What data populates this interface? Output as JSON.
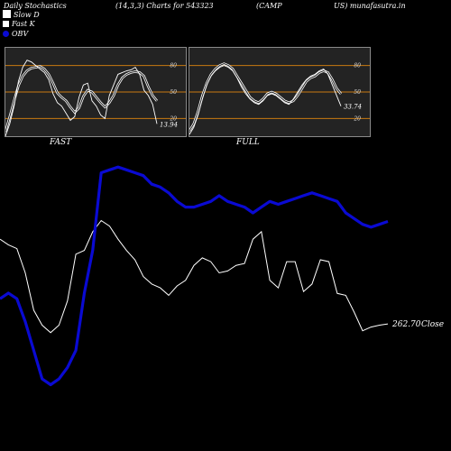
{
  "header": {
    "left": "Daily Stochastics",
    "mid": "(14,3,3) Charts for 543323",
    "right1": "(CAMP",
    "right2": "US) munafasutra.in"
  },
  "legend": {
    "slow_d": "Slow  D",
    "fast_k": "Fast K",
    "obv": "OBV"
  },
  "colors": {
    "background": "#000000",
    "panel": "#232323",
    "level_lines": "#c87a10",
    "obv": "#0a0ad2",
    "price": "#ffffff"
  },
  "chart_data": [
    {
      "name": "FAST",
      "type": "line",
      "label": "FAST",
      "levels": [
        20,
        50,
        80
      ],
      "yticks": [
        "80",
        "50",
        "20"
      ],
      "ylim": [
        0,
        100
      ],
      "end_value": "13.94",
      "series": [
        {
          "name": "Slow  D",
          "values": [
            5,
            22,
            40,
            57,
            68,
            74,
            77,
            78,
            79,
            76,
            70,
            60,
            49,
            44,
            40,
            33,
            27,
            32,
            45,
            52,
            50,
            44,
            38,
            33,
            38,
            46,
            58,
            66,
            70,
            72,
            73,
            72,
            68,
            56,
            46,
            40
          ]
        },
        {
          "name": "Fast K",
          "values": [
            0,
            14,
            34,
            62,
            78,
            86,
            84,
            80,
            76,
            72,
            64,
            48,
            38,
            34,
            26,
            18,
            22,
            44,
            58,
            60,
            40,
            34,
            24,
            20,
            46,
            58,
            70,
            72,
            74,
            75,
            78,
            70,
            52,
            46,
            36,
            14
          ]
        }
      ]
    },
    {
      "name": "FULL",
      "type": "line",
      "label": "FULL",
      "levels": [
        20,
        50,
        80
      ],
      "yticks": [
        "80",
        "50",
        "20"
      ],
      "ylim": [
        0,
        100
      ],
      "end_value": "33.74",
      "series": [
        {
          "name": "Slow  D",
          "values": [
            6,
            14,
            28,
            46,
            60,
            70,
            76,
            80,
            82,
            80,
            76,
            68,
            60,
            52,
            44,
            40,
            38,
            42,
            48,
            50,
            48,
            44,
            40,
            38,
            40,
            46,
            54,
            62,
            66,
            68,
            72,
            74,
            72,
            64,
            54,
            48
          ]
        },
        {
          "name": "Fast K",
          "values": [
            2,
            10,
            24,
            42,
            58,
            68,
            74,
            78,
            80,
            78,
            74,
            66,
            56,
            48,
            42,
            38,
            36,
            40,
            46,
            48,
            46,
            42,
            38,
            36,
            42,
            50,
            58,
            64,
            68,
            70,
            74,
            76,
            70,
            58,
            46,
            34
          ]
        }
      ]
    },
    {
      "name": "Price and OBV",
      "type": "line",
      "close_label": "262.70",
      "close_word": "Close",
      "series": [
        {
          "name": "Close",
          "values": [
            308,
            305,
            303,
            290,
            270,
            262,
            258,
            262,
            275,
            300,
            302,
            312,
            318,
            315,
            308,
            302,
            297,
            288,
            284,
            282,
            278,
            283,
            286,
            294,
            298,
            296,
            290,
            291,
            294,
            295,
            308,
            312,
            286,
            282,
            296,
            296,
            280,
            284,
            297,
            296,
            279,
            278,
            269,
            259,
            261,
            262,
            262.7
          ]
        },
        {
          "name": "OBV",
          "values": [
            58,
            60,
            58,
            50,
            40,
            30,
            28,
            30,
            34,
            40,
            60,
            75,
            102,
            103,
            104,
            103,
            102,
            101,
            98,
            97,
            95,
            92,
            90,
            90,
            91,
            92,
            94,
            92,
            91,
            90,
            88,
            90,
            92,
            91,
            92,
            93,
            94,
            95,
            94,
            93,
            92,
            88,
            86,
            84,
            83,
            84,
            85
          ]
        }
      ]
    }
  ]
}
